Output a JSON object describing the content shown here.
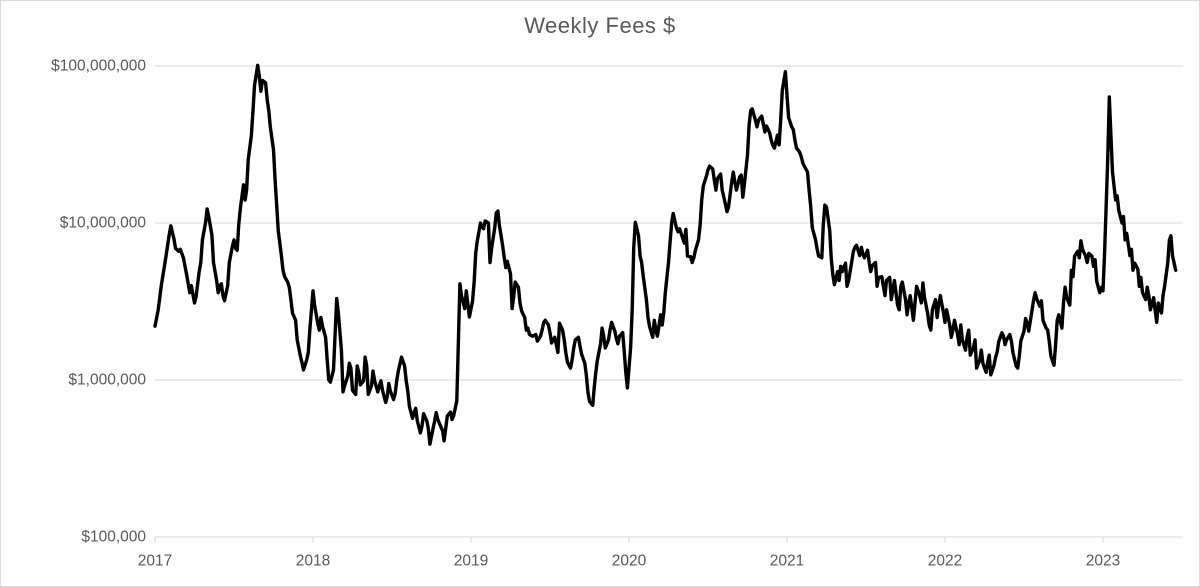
{
  "chart_data": {
    "type": "line",
    "title": "Weekly Fees $",
    "legend": false,
    "grid": "horizontal-major-only",
    "x_axis": {
      "min_year": 2017,
      "max_year": 2023.51,
      "tick_labels": [
        "2017",
        "2018",
        "2019",
        "2020",
        "2021",
        "2022",
        "2023"
      ],
      "tick_years": [
        2017,
        2018,
        2019,
        2020,
        2021,
        2022,
        2023
      ]
    },
    "y_axis": {
      "scale": "log",
      "units": "USD",
      "min": 100000,
      "max": 100000000,
      "ticks": [
        {
          "label": "$100,000,000",
          "value": 100000000
        },
        {
          "label": "$10,000,000",
          "value": 10000000
        },
        {
          "label": "$1,000,000",
          "value": 1000000
        },
        {
          "label": "$100,000",
          "value": 100000
        }
      ]
    },
    "series": [
      {
        "name": "Weekly Fees",
        "color": "#000000",
        "units": "million USD",
        "x_years": [
          2017.0,
          2017.02,
          2017.04,
          2017.07,
          2017.09,
          2017.1,
          2017.12,
          2017.13,
          2017.15,
          2017.16,
          2017.18,
          2017.2,
          2017.22,
          2017.23,
          2017.25,
          2017.26,
          2017.28,
          2017.29,
          2017.3,
          2017.32,
          2017.33,
          2017.34,
          2017.36,
          2017.37,
          2017.39,
          2017.4,
          2017.41,
          2017.42,
          2017.43,
          2017.44,
          2017.46,
          2017.47,
          2017.49,
          2017.5,
          2017.51,
          2017.52,
          2017.53,
          2017.54,
          2017.56,
          2017.57,
          2017.58,
          2017.59,
          2017.61,
          2017.62,
          2017.63,
          2017.65,
          2017.66,
          2017.67,
          2017.68,
          2017.7,
          2017.71,
          2017.72,
          2017.73,
          2017.75,
          2017.76,
          2017.77,
          2017.78,
          2017.8,
          2017.81,
          2017.82,
          2017.84,
          2017.85,
          2017.86,
          2017.87,
          2017.89,
          2017.9,
          2017.92,
          2017.93,
          2017.94,
          2017.96,
          2017.97,
          2017.98,
          2018.0,
          2018.01,
          2018.03,
          2018.04,
          2018.05,
          2018.06,
          2018.08,
          2018.09,
          2018.1,
          2018.11,
          2018.13,
          2018.15,
          2018.16,
          2018.18,
          2018.19,
          2018.2,
          2018.22,
          2018.23,
          2018.24,
          2018.25,
          2018.27,
          2018.28,
          2018.29,
          2018.3,
          2018.32,
          2018.33,
          2018.34,
          2018.35,
          2018.37,
          2018.38,
          2018.39,
          2018.41,
          2018.42,
          2018.43,
          2018.44,
          2018.46,
          2018.47,
          2018.48,
          2018.49,
          2018.51,
          2018.52,
          2018.53,
          2018.54,
          2018.56,
          2018.58,
          2018.59,
          2018.6,
          2018.61,
          2018.63,
          2018.64,
          2018.65,
          2018.66,
          2018.68,
          2018.69,
          2018.7,
          2018.72,
          2018.73,
          2018.74,
          2018.75,
          2018.77,
          2018.78,
          2018.79,
          2018.8,
          2018.82,
          2018.83,
          2018.84,
          2018.85,
          2018.87,
          2018.88,
          2018.89,
          2018.91,
          2018.92,
          2018.93,
          2018.94,
          2018.96,
          2018.97,
          2018.98,
          2018.99,
          2019.01,
          2019.02,
          2019.03,
          2019.04,
          2019.06,
          2019.07,
          2019.08,
          2019.09,
          2019.11,
          2019.12,
          2019.13,
          2019.15,
          2019.16,
          2019.17,
          2019.18,
          2019.2,
          2019.21,
          2019.22,
          2019.23,
          2019.25,
          2019.26,
          2019.27,
          2019.28,
          2019.3,
          2019.31,
          2019.32,
          2019.34,
          2019.35,
          2019.36,
          2019.37,
          2019.39,
          2019.41,
          2019.42,
          2019.44,
          2019.45,
          2019.46,
          2019.47,
          2019.49,
          2019.5,
          2019.51,
          2019.53,
          2019.54,
          2019.55,
          2019.56,
          2019.58,
          2019.59,
          2019.6,
          2019.61,
          2019.63,
          2019.64,
          2019.65,
          2019.66,
          2019.68,
          2019.69,
          2019.7,
          2019.72,
          2019.73,
          2019.74,
          2019.75,
          2019.77,
          2019.78,
          2019.79,
          2019.8,
          2019.82,
          2019.83,
          2019.84,
          2019.85,
          2019.87,
          2019.88,
          2019.89,
          2019.91,
          2019.92,
          2019.93,
          2019.94,
          2019.96,
          2019.97,
          2019.98,
          2019.99,
          2020.01,
          2020.02,
          2020.03,
          2020.04,
          2020.06,
          2020.07,
          2020.08,
          2020.09,
          2020.11,
          2020.12,
          2020.13,
          2020.15,
          2020.16,
          2020.17,
          2020.18,
          2020.2,
          2020.21,
          2020.22,
          2020.23,
          2020.25,
          2020.26,
          2020.27,
          2020.28,
          2020.3,
          2020.31,
          2020.32,
          2020.34,
          2020.35,
          2020.36,
          2020.37,
          2020.39,
          2020.4,
          2020.41,
          2020.42,
          2020.44,
          2020.45,
          2020.46,
          2020.47,
          2020.49,
          2020.5,
          2020.51,
          2020.53,
          2020.54,
          2020.55,
          2020.56,
          2020.58,
          2020.59,
          2020.61,
          2020.62,
          2020.63,
          2020.65,
          2020.66,
          2020.67,
          2020.68,
          2020.7,
          2020.71,
          2020.72,
          2020.73,
          2020.75,
          2020.76,
          2020.77,
          2020.78,
          2020.8,
          2020.81,
          2020.82,
          2020.84,
          2020.85,
          2020.86,
          2020.87,
          2020.89,
          2020.9,
          2020.91,
          2020.92,
          2020.94,
          2020.95,
          2020.96,
          2020.97,
          2020.99,
          2021.0,
          2021.01,
          2021.03,
          2021.04,
          2021.05,
          2021.06,
          2021.08,
          2021.09,
          2021.1,
          2021.11,
          2021.13,
          2021.14,
          2021.15,
          2021.16,
          2021.18,
          2021.19,
          2021.2,
          2021.22,
          2021.23,
          2021.24,
          2021.25,
          2021.27,
          2021.28,
          2021.29,
          2021.3,
          2021.32,
          2021.33,
          2021.34,
          2021.35,
          2021.37,
          2021.38,
          2021.39,
          2021.41,
          2021.42,
          2021.43,
          2021.44,
          2021.46,
          2021.47,
          2021.48,
          2021.49,
          2021.51,
          2021.52,
          2021.53,
          2021.54,
          2021.56,
          2021.57,
          2021.58,
          2021.6,
          2021.61,
          2021.62,
          2021.63,
          2021.65,
          2021.66,
          2021.67,
          2021.68,
          2021.7,
          2021.71,
          2021.72,
          2021.73,
          2021.75,
          2021.76,
          2021.77,
          2021.78,
          2021.8,
          2021.81,
          2021.82,
          2021.84,
          2021.85,
          2021.86,
          2021.87,
          2021.89,
          2021.9,
          2021.91,
          2021.92,
          2021.94,
          2021.95,
          2021.96,
          2021.97,
          2021.99,
          2022.0,
          2022.01,
          2022.03,
          2022.04,
          2022.05,
          2022.06,
          2022.08,
          2022.09,
          2022.1,
          2022.11,
          2022.13,
          2022.14,
          2022.15,
          2022.16,
          2022.18,
          2022.19,
          2022.2,
          2022.22,
          2022.23,
          2022.24,
          2022.26,
          2022.27,
          2022.28,
          2022.29,
          2022.31,
          2022.32,
          2022.33,
          2022.34,
          2022.36,
          2022.37,
          2022.38,
          2022.39,
          2022.41,
          2022.42,
          2022.43,
          2022.45,
          2022.46,
          2022.47,
          2022.48,
          2022.5,
          2022.51,
          2022.52,
          2022.53,
          2022.55,
          2022.56,
          2022.57,
          2022.58,
          2022.6,
          2022.61,
          2022.62,
          2022.64,
          2022.65,
          2022.66,
          2022.67,
          2022.69,
          2022.7,
          2022.71,
          2022.72,
          2022.74,
          2022.75,
          2022.76,
          2022.77,
          2022.79,
          2022.8,
          2022.81,
          2022.82,
          2022.84,
          2022.85,
          2022.86,
          2022.87,
          2022.89,
          2022.9,
          2022.91,
          2022.93,
          2022.94,
          2022.95,
          2022.96,
          2022.98,
          2022.99,
          2023.0,
          2023.01,
          2023.03,
          2023.04,
          2023.05,
          2023.06,
          2023.08,
          2023.09,
          2023.1,
          2023.12,
          2023.13,
          2023.14,
          2023.15,
          2023.17,
          2023.18,
          2023.19,
          2023.2,
          2023.22,
          2023.23,
          2023.24,
          2023.25,
          2023.27,
          2023.28,
          2023.29,
          2023.3,
          2023.32,
          2023.33,
          2023.34,
          2023.35,
          2023.37,
          2023.38,
          2023.39,
          2023.41,
          2023.42,
          2023.43,
          2023.44,
          2023.46
        ],
        "values_usd_millions": [
          2.2,
          2.8,
          4.0,
          6.2,
          8.4,
          9.6,
          7.9,
          6.9,
          6.6,
          6.8,
          6.0,
          4.7,
          3.6,
          4.0,
          3.1,
          3.4,
          4.9,
          5.6,
          7.8,
          10.1,
          12.3,
          11.0,
          8.4,
          5.6,
          4.3,
          3.6,
          4.0,
          4.1,
          3.45,
          3.2,
          4.0,
          5.6,
          7.1,
          7.8,
          6.9,
          6.7,
          9.7,
          12.3,
          17.5,
          14.0,
          16.2,
          25.2,
          36.3,
          52.0,
          75.0,
          101.0,
          86.0,
          69.0,
          81.0,
          78.0,
          61.0,
          52.0,
          41.0,
          29.2,
          18.8,
          13.0,
          9.0,
          6.2,
          5.0,
          4.55,
          4.2,
          3.9,
          3.25,
          2.67,
          2.4,
          1.8,
          1.42,
          1.3,
          1.16,
          1.34,
          1.5,
          2.08,
          3.7,
          3.0,
          2.3,
          2.08,
          2.5,
          2.2,
          1.87,
          1.34,
          1.0,
          0.97,
          1.16,
          3.3,
          2.7,
          1.55,
          0.84,
          0.92,
          1.06,
          1.28,
          1.19,
          0.86,
          0.81,
          1.23,
          1.11,
          0.93,
          0.99,
          1.4,
          1.23,
          0.81,
          0.92,
          1.14,
          0.99,
          0.84,
          0.92,
          0.99,
          0.86,
          0.72,
          0.79,
          0.95,
          0.85,
          0.75,
          0.82,
          0.99,
          1.14,
          1.4,
          1.23,
          0.99,
          0.85,
          0.68,
          0.57,
          0.62,
          0.66,
          0.55,
          0.46,
          0.51,
          0.61,
          0.55,
          0.49,
          0.39,
          0.44,
          0.55,
          0.62,
          0.56,
          0.53,
          0.475,
          0.41,
          0.49,
          0.59,
          0.625,
          0.56,
          0.59,
          0.735,
          1.77,
          4.1,
          3.45,
          2.85,
          3.7,
          3.05,
          2.52,
          3.2,
          4.25,
          6.4,
          7.7,
          10.0,
          9.4,
          9.2,
          10.3,
          10.0,
          5.6,
          6.8,
          9.3,
          11.6,
          11.9,
          9.65,
          7.2,
          6.05,
          5.2,
          5.7,
          4.75,
          2.85,
          3.4,
          4.2,
          3.9,
          3.1,
          2.75,
          2.5,
          2.08,
          2.14,
          1.95,
          1.9,
          1.95,
          1.77,
          1.9,
          2.08,
          2.33,
          2.4,
          2.24,
          2.0,
          1.72,
          1.87,
          1.68,
          1.5,
          2.3,
          2.08,
          1.8,
          1.5,
          1.3,
          1.19,
          1.34,
          1.6,
          1.8,
          1.87,
          1.65,
          1.46,
          1.28,
          1.08,
          0.84,
          0.73,
          0.69,
          0.89,
          1.12,
          1.34,
          1.7,
          2.14,
          1.9,
          1.6,
          1.8,
          2.08,
          2.33,
          2.05,
          1.83,
          1.7,
          1.9,
          2.0,
          1.5,
          1.12,
          0.89,
          1.6,
          2.8,
          6.9,
          10.1,
          8.3,
          6.15,
          5.6,
          4.6,
          3.25,
          2.5,
          2.2,
          1.87,
          2.4,
          2.08,
          1.9,
          2.6,
          2.24,
          2.7,
          3.6,
          5.6,
          7.6,
          10.1,
          11.5,
          9.3,
          8.8,
          9.2,
          8.0,
          7.45,
          9.1,
          6.15,
          6.1,
          5.6,
          6.0,
          6.7,
          7.8,
          9.65,
          14.0,
          17.2,
          19.9,
          21.8,
          23.0,
          22.1,
          18.8,
          16.2,
          19.2,
          20.5,
          16.2,
          13.2,
          11.8,
          12.6,
          18.2,
          21.1,
          18.2,
          16.2,
          19.6,
          20.2,
          14.6,
          17.5,
          27.1,
          42.0,
          52.0,
          53.3,
          45.2,
          41.0,
          45.2,
          48.0,
          42.7,
          38.0,
          41.5,
          37.6,
          33.8,
          31.2,
          30.0,
          36.3,
          31.5,
          45.2,
          70.0,
          92.0,
          65.0,
          47.0,
          41.0,
          39.3,
          33.8,
          30.0,
          28.3,
          26.5,
          24.1,
          23.0,
          21.1,
          16.2,
          12.8,
          9.3,
          7.9,
          6.9,
          6.15,
          6.0,
          9.8,
          13.0,
          12.6,
          9.0,
          6.0,
          4.7,
          4.05,
          4.9,
          4.3,
          5.3,
          4.9,
          5.55,
          3.95,
          4.3,
          5.7,
          6.6,
          7.0,
          7.2,
          6.2,
          7.0,
          6.4,
          6.0,
          6.7,
          5.6,
          4.9,
          5.35,
          5.6,
          3.95,
          4.5,
          4.55,
          3.95,
          3.45,
          4.3,
          4.5,
          3.25,
          3.75,
          4.3,
          3.0,
          2.8,
          3.95,
          4.2,
          3.25,
          2.6,
          3.1,
          3.45,
          2.4,
          3.1,
          3.95,
          3.45,
          3.1,
          4.15,
          3.35,
          2.67,
          2.24,
          2.08,
          2.8,
          3.25,
          2.5,
          3.0,
          3.45,
          2.7,
          2.33,
          2.8,
          2.24,
          1.87,
          2.08,
          2.4,
          1.94,
          1.68,
          2.24,
          1.8,
          1.55,
          1.87,
          2.08,
          1.44,
          1.6,
          1.8,
          1.19,
          1.34,
          1.55,
          1.28,
          1.12,
          1.3,
          1.44,
          1.08,
          1.24,
          1.4,
          1.5,
          1.75,
          2.0,
          1.9,
          1.68,
          1.8,
          1.95,
          1.77,
          1.5,
          1.23,
          1.19,
          1.42,
          1.77,
          2.05,
          2.46,
          2.3,
          2.05,
          2.75,
          3.2,
          3.6,
          3.3,
          2.95,
          3.2,
          2.4,
          2.14,
          2.08,
          1.75,
          1.42,
          1.24,
          1.68,
          2.4,
          2.6,
          2.14,
          3.1,
          3.9,
          3.35,
          3.0,
          5.0,
          4.55,
          6.15,
          6.6,
          6.0,
          7.7,
          6.8,
          6.15,
          5.6,
          6.4,
          6.15,
          5.3,
          5.85,
          4.25,
          3.6,
          3.9,
          3.7,
          6.5,
          25.2,
          63.5,
          36.3,
          21.1,
          14.0,
          14.9,
          12.0,
          10.0,
          11.0,
          7.8,
          8.6,
          6.2,
          6.8,
          5.0,
          5.55,
          5.1,
          3.95,
          4.5,
          3.6,
          3.25,
          3.9,
          3.45,
          2.8,
          3.35,
          2.8,
          2.33,
          3.1,
          2.67,
          3.45,
          3.95,
          5.6,
          7.8,
          8.3,
          6.2,
          5.0
        ]
      }
    ]
  },
  "style": {
    "line_color": "#000000",
    "grid_color": "#d9d9d9",
    "axis_color": "#d9d9d9",
    "text_color": "#595959",
    "title_color": "#595959",
    "background": "#ffffff"
  }
}
